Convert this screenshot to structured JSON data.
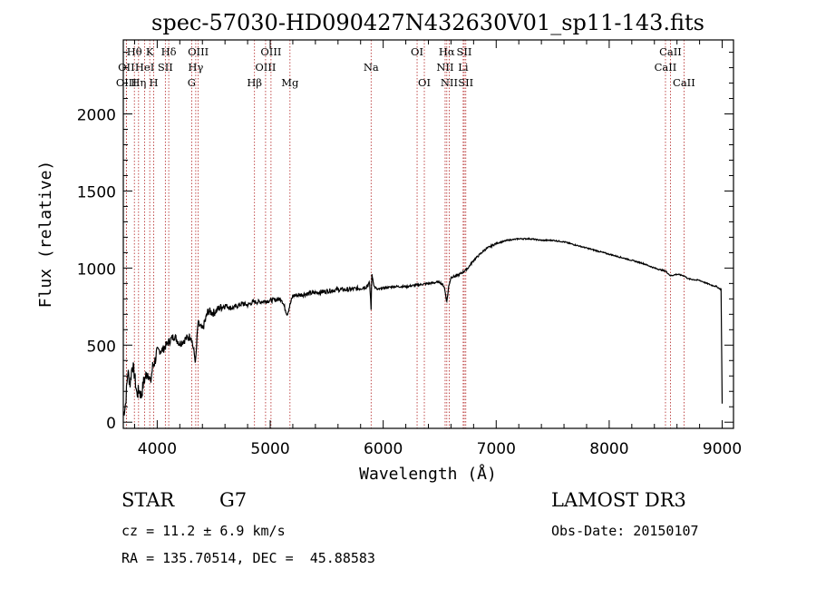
{
  "colors": {
    "ink": "#000000",
    "line_marker": "#b22222",
    "background": "#ffffff"
  },
  "chart_data": {
    "type": "line",
    "title": "spec-57030-HD090427N432630V01_sp11-143.fits",
    "xlabel": "Wavelength (Å)",
    "ylabel": "Flux (relative)",
    "xlim": [
      3700,
      9100
    ],
    "ylim": [
      -40,
      2480
    ],
    "x_ticks": [
      4000,
      5000,
      6000,
      7000,
      8000,
      9000
    ],
    "x_tick_labels": [
      "4000",
      "5000",
      "6000",
      "7000",
      "8000",
      "9000"
    ],
    "y_ticks": [
      0,
      500,
      1000,
      1500,
      2000
    ],
    "y_tick_labels": [
      "0",
      "500",
      "1000",
      "1500",
      "2000"
    ],
    "series": [
      {
        "name": "flux",
        "x": [
          3700,
          3720,
          3740,
          3760,
          3780,
          3800,
          3820,
          3840,
          3860,
          3880,
          3900,
          3920,
          3940,
          3960,
          3980,
          4000,
          4050,
          4100,
          4150,
          4200,
          4250,
          4300,
          4340,
          4360,
          4400,
          4450,
          4500,
          4550,
          4600,
          4650,
          4700,
          4750,
          4800,
          4850,
          4900,
          5000,
          5100,
          5150,
          5175,
          5200,
          5300,
          5400,
          5500,
          5600,
          5700,
          5800,
          5850,
          5880,
          5893,
          5900,
          5920,
          5950,
          6000,
          6100,
          6200,
          6300,
          6400,
          6500,
          6540,
          6563,
          6580,
          6600,
          6650,
          6700,
          6750,
          6800,
          6900,
          7000,
          7100,
          7200,
          7300,
          7400,
          7500,
          7600,
          7700,
          7800,
          7900,
          8000,
          8100,
          8200,
          8300,
          8400,
          8500,
          8542,
          8600,
          8662,
          8700,
          8800,
          8900,
          8950,
          8990,
          9000
        ],
        "y": [
          50,
          120,
          330,
          250,
          380,
          300,
          180,
          210,
          170,
          260,
          300,
          330,
          250,
          360,
          400,
          460,
          470,
          520,
          560,
          510,
          540,
          560,
          390,
          640,
          600,
          720,
          710,
          740,
          760,
          740,
          750,
          770,
          760,
          780,
          780,
          790,
          800,
          700,
          760,
          820,
          830,
          840,
          850,
          860,
          860,
          870,
          880,
          900,
          740,
          960,
          880,
          860,
          870,
          880,
          880,
          890,
          900,
          910,
          880,
          780,
          880,
          940,
          950,
          970,
          1000,
          1050,
          1120,
          1160,
          1180,
          1190,
          1190,
          1180,
          1180,
          1170,
          1150,
          1130,
          1110,
          1090,
          1070,
          1050,
          1030,
          1000,
          980,
          950,
          960,
          950,
          930,
          920,
          890,
          880,
          860,
          120
        ]
      }
    ],
    "spectral_lines": [
      {
        "label": "Hθ",
        "x": 3798,
        "row": 1
      },
      {
        "label": "OII",
        "x": 3727,
        "row": 2
      },
      {
        "label": "OIII",
        "x": 3727,
        "row": 3
      },
      {
        "label": "K",
        "x": 3934,
        "row": 1
      },
      {
        "label": "HeI",
        "x": 3889,
        "row": 2
      },
      {
        "label": "Hη",
        "x": 3835,
        "row": 3
      },
      {
        "label": "SII",
        "x": 4072,
        "row": 2
      },
      {
        "label": "H",
        "x": 3969,
        "row": 3
      },
      {
        "label": "Hδ",
        "x": 4102,
        "row": 1
      },
      {
        "label": "OIII",
        "x": 4363,
        "row": 1
      },
      {
        "label": "Hγ",
        "x": 4341,
        "row": 2
      },
      {
        "label": "G",
        "x": 4305,
        "row": 3
      },
      {
        "label": "OIII",
        "x": 5007,
        "row": 1
      },
      {
        "label": "OIII",
        "x": 4959,
        "row": 2
      },
      {
        "label": "Hβ",
        "x": 4861,
        "row": 3
      },
      {
        "label": "Mg",
        "x": 5175,
        "row": 3
      },
      {
        "label": "Na",
        "x": 5893,
        "row": 2
      },
      {
        "label": "OI",
        "x": 6300,
        "row": 1
      },
      {
        "label": "OI",
        "x": 6364,
        "row": 3
      },
      {
        "label": "Hα",
        "x": 6563,
        "row": 1
      },
      {
        "label": "SII",
        "x": 6717,
        "row": 1
      },
      {
        "label": "NII",
        "x": 6548,
        "row": 2
      },
      {
        "label": "Li",
        "x": 6708,
        "row": 2
      },
      {
        "label": "NII",
        "x": 6584,
        "row": 3
      },
      {
        "label": "SII",
        "x": 6731,
        "row": 3
      },
      {
        "label": "CaII",
        "x": 8542,
        "row": 1
      },
      {
        "label": "CaII",
        "x": 8498,
        "row": 2
      },
      {
        "label": "CaII",
        "x": 8662,
        "row": 3
      }
    ]
  },
  "info": {
    "object_class": "STAR",
    "subclass": "G7",
    "survey": "LAMOST DR3",
    "cz": "cz = 11.2 ± 6.9 km/s",
    "obs_date": "Obs-Date: 20150107",
    "coords": "RA = 135.70514, DEC =  45.88583"
  }
}
